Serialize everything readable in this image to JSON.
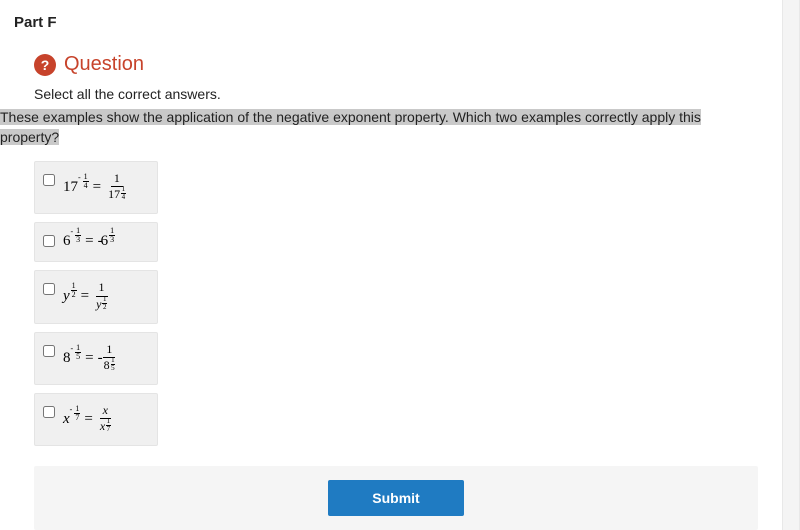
{
  "part_label": "Part F",
  "question_icon_text": "?",
  "question_title": "Question",
  "instruction": "Select all the correct answers.",
  "prompt_line1": "These examples show the application of the negative exponent property. Which two examples correctly apply this",
  "prompt_line2": "property?",
  "options": [
    {
      "base": "17",
      "base_italic": false,
      "exp_neg": true,
      "exp_num": "1",
      "exp_den": "4",
      "rhs_neg": false,
      "rhs_type": "frac",
      "rhs_num": "1",
      "rhs_den_base": "17",
      "rhs_den_exp_num": "1",
      "rhs_den_exp_den": "4"
    },
    {
      "base": "6",
      "base_italic": false,
      "exp_neg": true,
      "exp_num": "1",
      "exp_den": "3",
      "rhs_neg": true,
      "rhs_type": "term",
      "rhs_base": "6",
      "rhs_exp_num": "1",
      "rhs_exp_den": "3"
    },
    {
      "base": "y",
      "base_italic": true,
      "exp_neg": false,
      "exp_num": "1",
      "exp_den": "2",
      "rhs_neg": false,
      "rhs_type": "frac",
      "rhs_num": "1",
      "rhs_den_base": "y",
      "rhs_den_base_italic": true,
      "rhs_den_exp_num": "1",
      "rhs_den_exp_den": "2"
    },
    {
      "base": "8",
      "base_italic": false,
      "exp_neg": true,
      "exp_num": "1",
      "exp_den": "5",
      "rhs_neg": true,
      "rhs_type": "frac",
      "rhs_num": "1",
      "rhs_den_base": "8",
      "rhs_den_exp_num": "1",
      "rhs_den_exp_den": "5"
    },
    {
      "base": "x",
      "base_italic": true,
      "exp_neg": true,
      "exp_num": "1",
      "exp_den": "7",
      "rhs_neg": false,
      "rhs_type": "frac",
      "rhs_num": "x",
      "rhs_num_italic": true,
      "rhs_den_base": "x",
      "rhs_den_base_italic": true,
      "rhs_den_exp_num": "1",
      "rhs_den_exp_den": "7"
    }
  ],
  "submit_label": "Submit",
  "colors": {
    "accent": "#c7432b",
    "submit_bg": "#1f7bc2",
    "submit_area_bg": "#f5f5f5",
    "option_bg": "#f0f0f0",
    "highlight_bg": "#c9c9c9"
  }
}
